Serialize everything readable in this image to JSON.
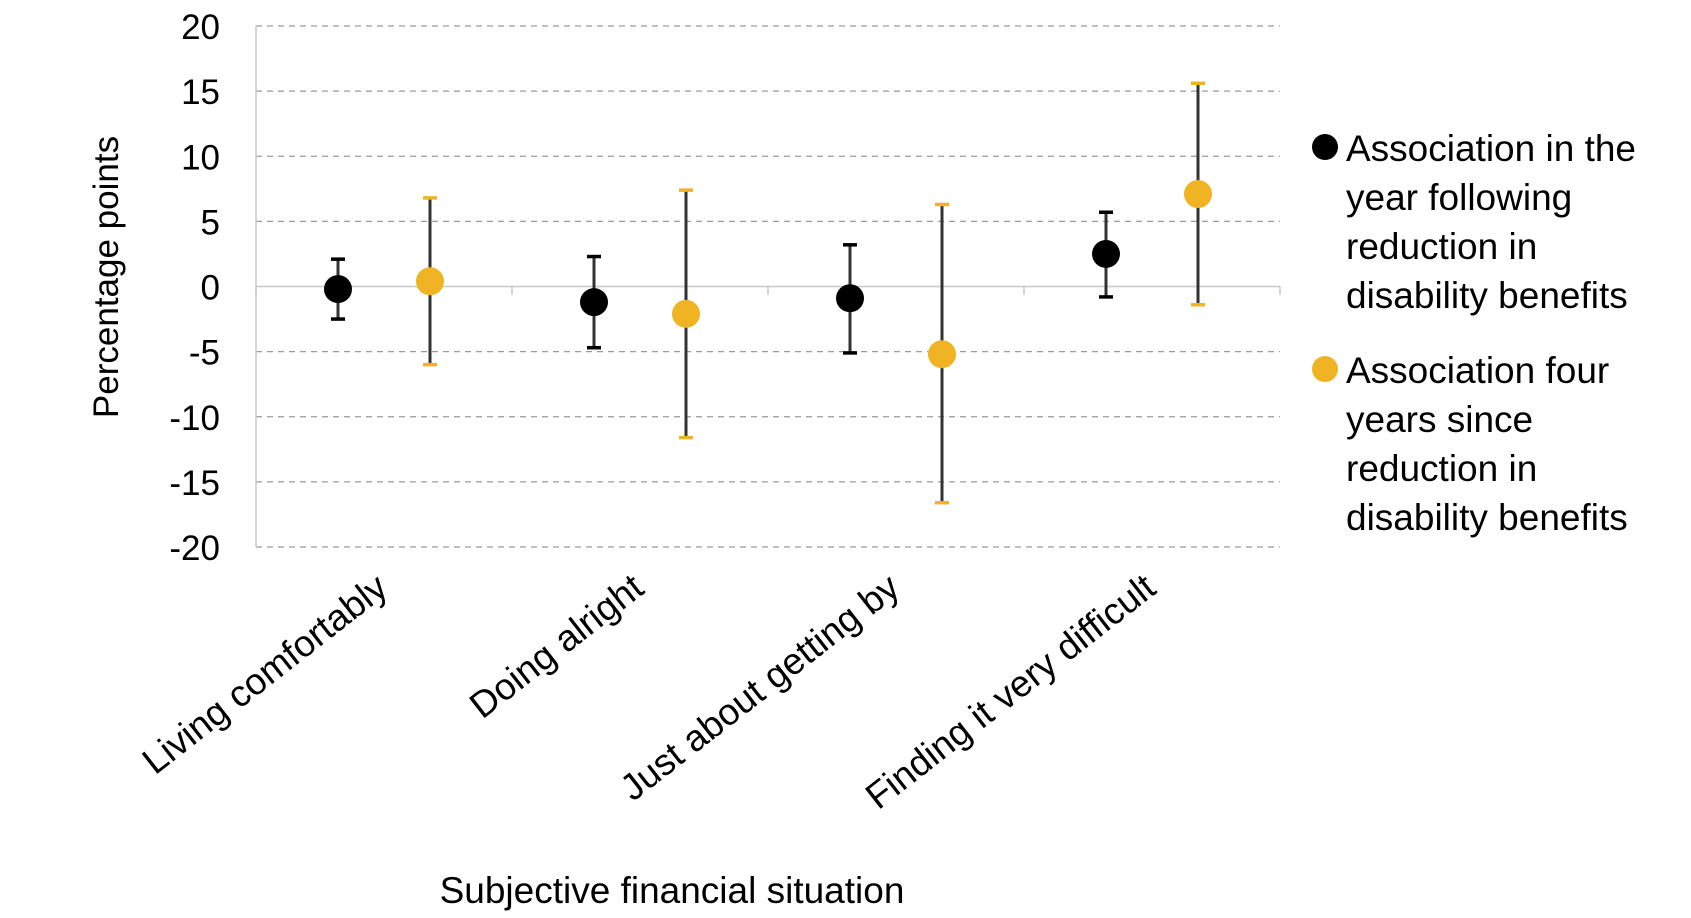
{
  "chart_data": {
    "type": "scatter",
    "subtype": "point-with-error-bars",
    "xlabel": "Subjective financial situation",
    "ylabel": "Percentage points",
    "ylim": [
      -20,
      20
    ],
    "yticks": [
      20,
      15,
      10,
      5,
      0,
      -5,
      -10,
      -15,
      -20
    ],
    "ytick_labels": [
      "20",
      "15",
      "10",
      "5",
      "0",
      "-5",
      "-10",
      "-15",
      "-20"
    ],
    "grid": "horizontal dashed",
    "legend_position": "right",
    "categories": [
      "Living comfortably",
      "Doing alright",
      "Just about getting by",
      "Finding it very difficult"
    ],
    "series": [
      {
        "name": "Association in the year following reduction in disability benefits",
        "color": "#000000",
        "values": [
          -0.2,
          -1.2,
          -0.9,
          2.5
        ],
        "lower": [
          -2.5,
          -4.7,
          -5.1,
          -0.8
        ],
        "upper": [
          2.1,
          2.3,
          3.2,
          5.7
        ]
      },
      {
        "name": "Association four years since reduction in disability benefits",
        "color": "#F0B323",
        "values": [
          0.4,
          -2.1,
          -5.2,
          7.1
        ],
        "lower": [
          -6.0,
          -11.6,
          -16.6,
          -1.4
        ],
        "upper": [
          6.8,
          7.4,
          6.3,
          15.6
        ]
      }
    ]
  }
}
